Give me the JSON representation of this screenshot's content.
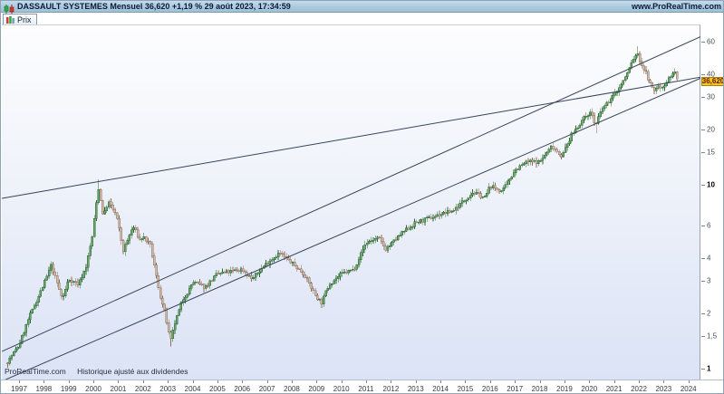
{
  "title_bar": {
    "title": "DASSAULT SYSTEMES Mensuel 36,620 +1,19 % 29 août 2023, 17:34:59",
    "website": "www.ProRealTime.com"
  },
  "tab": {
    "label": "Prix"
  },
  "watermark": {
    "brand": "ProRealTime.com",
    "note": "Historique ajusté aux dividendes"
  },
  "price_tag": {
    "label": "36,620"
  },
  "colors": {
    "up_fill": "#6aa06a",
    "up_border": "#2e6b33",
    "down_fill": "#cbbcab",
    "down_border": "#8d6e5a",
    "trendline": "#39455a",
    "tag_bg": "#f0c525",
    "tag_border": "#a8860a",
    "tag_text": "#6b2000"
  },
  "chart_data": {
    "type": "candlestick",
    "title": "DASSAULT SYSTEMES Mensuel",
    "scale": "log",
    "last_price": 36.62,
    "last_price_label": "36,620",
    "change_percent": "+1,19 %",
    "last_update": "29 août 2023, 17:34:59",
    "xlabel": "",
    "ylabel": "Prix",
    "xlim": [
      1996.3,
      2024.55
    ],
    "ylim": [
      0.88,
      75
    ],
    "x_years": [
      "1997",
      "1998",
      "1999",
      "2000",
      "2001",
      "2002",
      "2003",
      "2004",
      "2005",
      "2006",
      "2007",
      "2008",
      "2009",
      "2010",
      "2011",
      "2012",
      "2013",
      "2014",
      "2015",
      "2016",
      "2017",
      "2018",
      "2019",
      "2020",
      "2021",
      "2022",
      "2023",
      "2024"
    ],
    "y_ticks": [
      60,
      40,
      30,
      20,
      15,
      10,
      6,
      4,
      3,
      2,
      1.5,
      1
    ],
    "y_tick_labels": [
      "60",
      "40",
      "30",
      "20",
      "15",
      "10",
      "6",
      "4",
      "3",
      "2",
      "1,5",
      "1"
    ],
    "y_bold_ticks": [
      10,
      1
    ],
    "grid": false,
    "monthly_close_keypoints": [
      [
        1996.54,
        1.1
      ],
      [
        1997.0,
        1.35
      ],
      [
        1997.4,
        1.9
      ],
      [
        1998.0,
        2.9
      ],
      [
        1998.3,
        3.7
      ],
      [
        1998.75,
        2.4
      ],
      [
        1999.0,
        3.1
      ],
      [
        1999.4,
        2.9
      ],
      [
        1999.7,
        3.6
      ],
      [
        1999.95,
        5.2
      ],
      [
        2000.2,
        9.8
      ],
      [
        2000.4,
        6.8
      ],
      [
        2000.6,
        8.2
      ],
      [
        2000.9,
        7.0
      ],
      [
        2001.0,
        6.2
      ],
      [
        2001.2,
        4.4
      ],
      [
        2001.6,
        6.0
      ],
      [
        2001.9,
        5.0
      ],
      [
        2002.0,
        5.3
      ],
      [
        2002.3,
        4.7
      ],
      [
        2002.5,
        3.4
      ],
      [
        2002.7,
        2.5
      ],
      [
        2002.9,
        2.0
      ],
      [
        2003.1,
        1.4
      ],
      [
        2003.3,
        1.8
      ],
      [
        2003.6,
        2.4
      ],
      [
        2003.9,
        2.75
      ],
      [
        2004.0,
        3.0
      ],
      [
        2004.5,
        2.8
      ],
      [
        2005.0,
        3.3
      ],
      [
        2005.5,
        3.4
      ],
      [
        2006.0,
        3.5
      ],
      [
        2006.4,
        3.1
      ],
      [
        2007.0,
        3.8
      ],
      [
        2007.5,
        4.3
      ],
      [
        2008.0,
        3.8
      ],
      [
        2008.5,
        3.3
      ],
      [
        2008.9,
        2.6
      ],
      [
        2009.2,
        2.3
      ],
      [
        2009.5,
        2.9
      ],
      [
        2010.0,
        3.3
      ],
      [
        2010.5,
        3.5
      ],
      [
        2011.0,
        4.9
      ],
      [
        2011.5,
        5.2
      ],
      [
        2011.8,
        4.5
      ],
      [
        2012.0,
        4.8
      ],
      [
        2012.5,
        5.6
      ],
      [
        2013.0,
        6.3
      ],
      [
        2013.5,
        6.6
      ],
      [
        2014.0,
        7.0
      ],
      [
        2014.5,
        7.3
      ],
      [
        2015.3,
        9.2
      ],
      [
        2015.8,
        8.6
      ],
      [
        2016.0,
        10.0
      ],
      [
        2016.5,
        9.3
      ],
      [
        2017.0,
        12.2
      ],
      [
        2017.5,
        13.5
      ],
      [
        2018.0,
        13.5
      ],
      [
        2018.5,
        16.5
      ],
      [
        2018.9,
        14.5
      ],
      [
        2019.3,
        19.0
      ],
      [
        2019.9,
        24.5
      ],
      [
        2020.1,
        25.0
      ],
      [
        2020.25,
        21.0
      ],
      [
        2020.5,
        26.0
      ],
      [
        2020.9,
        30.0
      ],
      [
        2021.2,
        34.0
      ],
      [
        2021.5,
        40.0
      ],
      [
        2021.75,
        48.0
      ],
      [
        2021.92,
        53.0
      ],
      [
        2022.1,
        46.0
      ],
      [
        2022.3,
        41.0
      ],
      [
        2022.45,
        36.0
      ],
      [
        2022.6,
        32.5
      ],
      [
        2022.75,
        35.0
      ],
      [
        2022.9,
        34.0
      ],
      [
        2023.1,
        36.5
      ],
      [
        2023.3,
        40.0
      ],
      [
        2023.45,
        41.5
      ],
      [
        2023.58,
        36.62
      ]
    ],
    "extremes": [
      {
        "t": 2000.2,
        "high": 10.8
      },
      {
        "t": 2003.1,
        "low": 1.33
      },
      {
        "t": 2020.25,
        "low": 19.3
      },
      {
        "t": 2021.92,
        "high": 57.5
      }
    ],
    "noise": 0.025,
    "wick_jitter": 0.045,
    "trendlines": [
      {
        "name": "long-term-line",
        "t1": 1996.31,
        "p1": 8.53,
        "t2": 2024.53,
        "p2": 39.1
      },
      {
        "name": "channel-upper-line",
        "t1": 1996.31,
        "p1": 1.25,
        "t2": 2024.53,
        "p2": 65.2
      },
      {
        "name": "channel-lower-line",
        "t1": 1996.31,
        "p1": 0.86,
        "t2": 2024.53,
        "p2": 38.7
      }
    ],
    "price_marker": 36.62
  }
}
